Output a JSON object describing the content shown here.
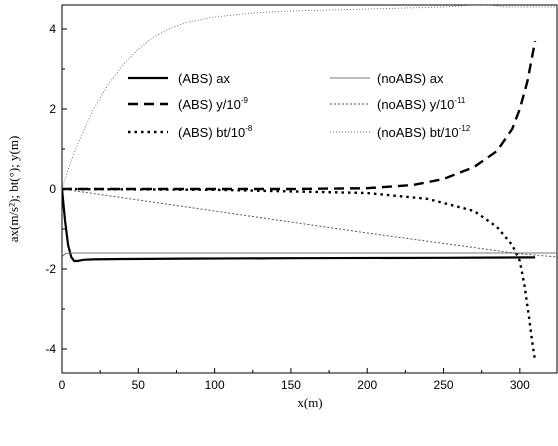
{
  "chart_data": {
    "type": "line",
    "xlabel": "x(m)",
    "ylabel": "ax(m/s²); bt(°); y(m)",
    "xlim": [
      0,
      325
    ],
    "ylim": [
      -4.6,
      4.6
    ],
    "x_ticks": [
      0,
      50,
      100,
      150,
      200,
      250,
      300
    ],
    "y_ticks": [
      -4,
      -2,
      0,
      2,
      4
    ],
    "x_tick_labels": [
      "0",
      "50",
      "100",
      "150",
      "200",
      "250",
      "300"
    ],
    "y_tick_labels": [
      "-4",
      "-2",
      "0",
      "2",
      "4"
    ],
    "grid": false,
    "legend_position": "upper-middle, two columns",
    "series": [
      {
        "name": "(ABS) ax",
        "label_main": "(ABS) ax",
        "label_sup": "",
        "color": "#000000",
        "style": "solid-thick",
        "x": [
          0,
          2,
          4,
          6,
          8,
          10,
          14,
          20,
          40,
          80,
          150,
          250,
          310
        ],
        "y": [
          0,
          -0.8,
          -1.4,
          -1.7,
          -1.8,
          -1.8,
          -1.77,
          -1.76,
          -1.75,
          -1.74,
          -1.73,
          -1.72,
          -1.71
        ]
      },
      {
        "name": "(ABS) y/10-9",
        "label_main": "(ABS) y/10",
        "label_sup": "-9",
        "color": "#000000",
        "style": "dashed-thick",
        "x": [
          0,
          100,
          150,
          200,
          230,
          250,
          270,
          285,
          295,
          300,
          305,
          310
        ],
        "y": [
          0,
          0,
          0,
          0.02,
          0.1,
          0.25,
          0.55,
          0.95,
          1.5,
          2.0,
          2.7,
          3.7
        ]
      },
      {
        "name": "(ABS) bt/10-8",
        "label_main": "(ABS) bt/10",
        "label_sup": "-8",
        "color": "#000000",
        "style": "dotted-thick",
        "x": [
          0,
          100,
          200,
          240,
          270,
          285,
          295,
          300,
          303,
          306,
          308,
          310
        ],
        "y": [
          0,
          -0.02,
          -0.1,
          -0.25,
          -0.55,
          -0.95,
          -1.4,
          -1.8,
          -2.4,
          -3.2,
          -3.8,
          -4.3
        ]
      },
      {
        "name": "(noABS) ax",
        "label_main": "(noABS) ax",
        "label_sup": "",
        "color": "#777777",
        "style": "solid-thin",
        "x": [
          0,
          2,
          5,
          15,
          50,
          150,
          250,
          325
        ],
        "y": [
          -1.7,
          -1.62,
          -1.6,
          -1.6,
          -1.6,
          -1.6,
          -1.6,
          -1.6
        ]
      },
      {
        "name": "(noABS) y/10-11",
        "label_main": "(noABS) y/10",
        "label_sup": "-11",
        "color": "#555555",
        "style": "dotted-thin",
        "x": [
          0,
          100,
          200,
          300,
          325
        ],
        "y": [
          0,
          -0.55,
          -1.1,
          -1.62,
          -1.7
        ]
      },
      {
        "name": "(noABS) bt/10-12",
        "label_main": "(noABS) bt/10",
        "label_sup": "-12",
        "color": "#666666",
        "style": "dotted-fine",
        "x": [
          0,
          5,
          10,
          20,
          30,
          40,
          50,
          60,
          70,
          80,
          100,
          125,
          150,
          200,
          250,
          270,
          280,
          290,
          300,
          325
        ],
        "y": [
          0,
          0.6,
          1.1,
          1.95,
          2.6,
          3.1,
          3.5,
          3.8,
          4.0,
          4.15,
          4.3,
          4.4,
          4.45,
          4.5,
          4.55,
          4.6,
          4.6,
          4.55,
          4.55,
          4.55
        ]
      }
    ]
  }
}
